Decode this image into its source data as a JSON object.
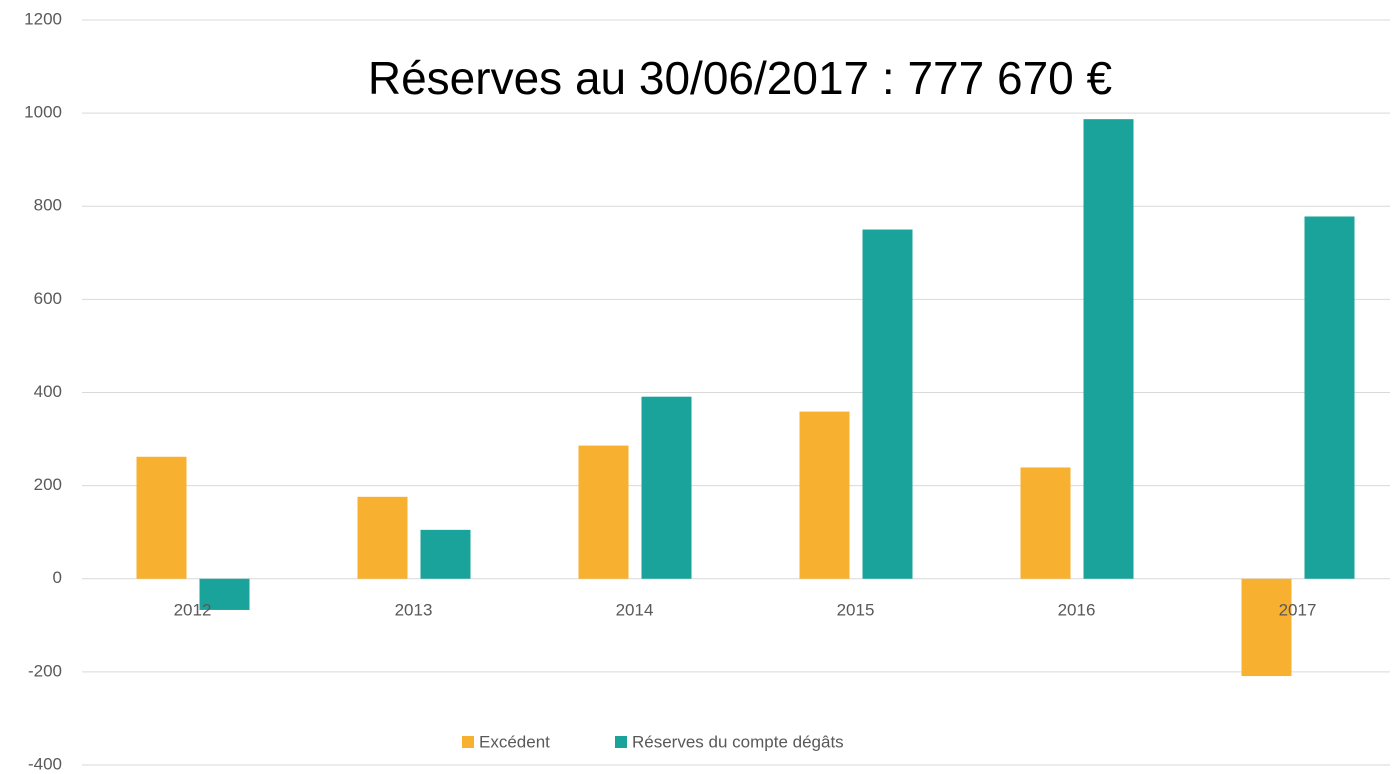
{
  "chart_data": {
    "type": "bar",
    "title": "Réserves au 30/06/2017 : 777 670 €",
    "categories": [
      "2012",
      "2013",
      "2014",
      "2015",
      "2016",
      "2017"
    ],
    "series": [
      {
        "name": "Excédent",
        "color": "#f7b030",
        "values": [
          262,
          176,
          286,
          359,
          239,
          -209
        ]
      },
      {
        "name": "Réserves du compte dégâts",
        "color": "#1aa39a",
        "values": [
          -67,
          105,
          391,
          750,
          987,
          778
        ]
      }
    ],
    "ylim": [
      -400,
      1200
    ],
    "yticks": [
      -400,
      -200,
      0,
      200,
      400,
      600,
      800,
      1000,
      1200
    ],
    "grid": true,
    "legend": "bottom"
  }
}
